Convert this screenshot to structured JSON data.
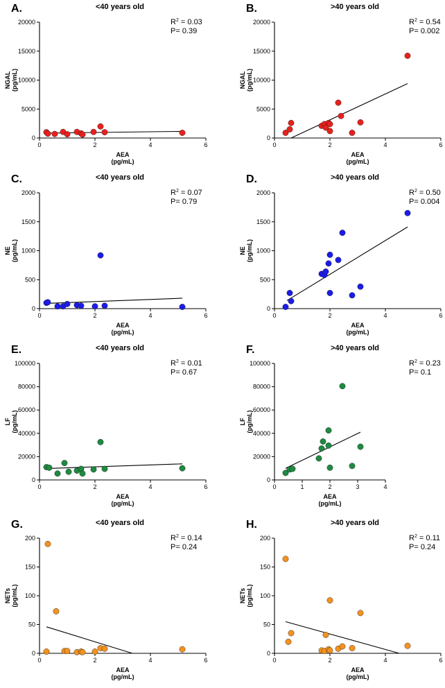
{
  "chart_data": [
    {
      "panel": "A.",
      "title": "<40 years old",
      "type": "scatter",
      "color": "#e8211d",
      "xlabel": [
        "AEA",
        "(pg/mL)"
      ],
      "ylabel": [
        "NGAL",
        "(pg/mL)"
      ],
      "xlim": [
        0,
        6
      ],
      "ylim": [
        0,
        20000
      ],
      "xticks": [
        0,
        2,
        4,
        6
      ],
      "yticks": [
        0,
        5000,
        10000,
        15000,
        20000
      ],
      "stats": [
        "R",
        "2",
        " = 0.03",
        "P= 0.39"
      ],
      "fit": [
        [
          0.25,
          850
        ],
        [
          5.15,
          1150
        ]
      ],
      "x": [
        0.25,
        0.3,
        0.55,
        0.85,
        1.0,
        1.35,
        1.5,
        1.55,
        1.95,
        2.2,
        2.35,
        5.15
      ],
      "y": [
        1000,
        750,
        700,
        1050,
        650,
        1050,
        800,
        600,
        1050,
        2000,
        1000,
        900
      ]
    },
    {
      "panel": "B.",
      "title": ">40 years old",
      "type": "scatter",
      "color": "#e8211d",
      "xlabel": [
        "AEA",
        "(pg/mL)"
      ],
      "ylabel": [
        "NGAL",
        "(pg/mL)"
      ],
      "xlim": [
        0,
        6
      ],
      "ylim": [
        0,
        20000
      ],
      "xticks": [
        0,
        2,
        4,
        6
      ],
      "yticks": [
        0,
        5000,
        10000,
        15000,
        20000
      ],
      "stats": [
        "R",
        "2",
        " = 0.54",
        "P= 0.002"
      ],
      "fit": [
        [
          0.6,
          0
        ],
        [
          4.8,
          9400
        ]
      ],
      "x": [
        0.4,
        0.55,
        0.6,
        1.7,
        1.8,
        1.85,
        1.95,
        2.0,
        2.0,
        2.3,
        2.4,
        2.8,
        3.1,
        4.8
      ],
      "y": [
        900,
        1500,
        2600,
        2100,
        2400,
        1800,
        2600,
        2400,
        1200,
        6100,
        3800,
        900,
        2700,
        14200
      ]
    },
    {
      "panel": "C.",
      "title": "<40 years old",
      "type": "scatter",
      "color": "#1c1ce8",
      "xlabel": [
        "AEA",
        "(pg/mL)"
      ],
      "ylabel": [
        "NE",
        "(pg/mL)"
      ],
      "xlim": [
        0,
        6
      ],
      "ylim": [
        0,
        2000
      ],
      "xticks": [
        0,
        2,
        4,
        6
      ],
      "yticks": [
        0,
        500,
        1000,
        1500,
        2000
      ],
      "stats": [
        "R",
        "2",
        " = 0.07",
        "P= 0.79"
      ],
      "fit": [
        [
          0.25,
          90
        ],
        [
          5.15,
          180
        ]
      ],
      "x": [
        0.25,
        0.3,
        0.65,
        0.85,
        1.0,
        1.35,
        1.5,
        2.0,
        2.2,
        2.35,
        5.15
      ],
      "y": [
        100,
        110,
        40,
        40,
        80,
        60,
        50,
        40,
        920,
        50,
        30
      ]
    },
    {
      "panel": "D.",
      "title": ">40 years old",
      "type": "scatter",
      "color": "#1c1ce8",
      "xlabel": [
        "AEA",
        "(pg/mL)"
      ],
      "ylabel": [
        "NE",
        "(pg/mL)"
      ],
      "xlim": [
        0,
        6
      ],
      "ylim": [
        0,
        2000
      ],
      "xticks": [
        0,
        2,
        4,
        6
      ],
      "yticks": [
        0,
        500,
        1000,
        1500,
        2000
      ],
      "stats": [
        "R",
        "2",
        " = 0.50",
        "P= 0.004"
      ],
      "fit": [
        [
          0.45,
          140
        ],
        [
          4.8,
          1410
        ]
      ],
      "x": [
        0.4,
        0.55,
        0.6,
        1.7,
        1.8,
        1.85,
        1.95,
        2.0,
        2.0,
        2.3,
        2.45,
        2.8,
        3.1,
        4.8
      ],
      "y": [
        30,
        270,
        130,
        600,
        580,
        640,
        780,
        930,
        270,
        840,
        1310,
        230,
        380,
        1650
      ]
    },
    {
      "panel": "E.",
      "title": "<40 years old",
      "type": "scatter",
      "color": "#1f8a42",
      "xlabel": [
        "AEA",
        "(pg/mL)"
      ],
      "ylabel": [
        "LF",
        "(pg/mL)"
      ],
      "xlim": [
        0,
        6
      ],
      "ylim": [
        0,
        100000
      ],
      "xticks": [
        0,
        2,
        4,
        6
      ],
      "yticks": [
        0,
        20000,
        40000,
        60000,
        80000,
        100000
      ],
      "stats": [
        "R",
        "2",
        " = 0.01",
        "P= 0.67"
      ],
      "fit": [
        [
          0.25,
          9800
        ],
        [
          5.15,
          13800
        ]
      ],
      "x": [
        0.25,
        0.35,
        0.65,
        0.9,
        1.05,
        1.35,
        1.5,
        1.55,
        1.95,
        2.2,
        2.35,
        5.15
      ],
      "y": [
        11000,
        10500,
        5500,
        14500,
        7000,
        8000,
        9500,
        5500,
        9000,
        32500,
        9500,
        10000
      ]
    },
    {
      "panel": "F.",
      "title": ">40 years old",
      "type": "scatter",
      "color": "#1f8a42",
      "xlabel": [
        "AEA",
        "(pg/mL)"
      ],
      "ylabel": [
        "LF",
        "(pg/mL)"
      ],
      "xlim": [
        0,
        4
      ],
      "ylim": [
        0,
        100000
      ],
      "xticks": [
        0,
        1,
        2,
        3,
        4
      ],
      "yticks": [
        0,
        20000,
        40000,
        60000,
        80000,
        100000
      ],
      "stats": [
        "R",
        "2",
        " = 0.23",
        "P= 0.1"
      ],
      "fit": [
        [
          0.4,
          10000
        ],
        [
          3.1,
          41000
        ]
      ],
      "x": [
        0.4,
        0.55,
        0.65,
        1.6,
        1.7,
        1.75,
        1.95,
        1.95,
        2.0,
        2.45,
        2.8,
        3.1
      ],
      "y": [
        6000,
        9000,
        9500,
        18500,
        27000,
        33000,
        42500,
        29500,
        10500,
        80500,
        12000,
        28500
      ]
    },
    {
      "panel": "G.",
      "title": "<40 years old",
      "type": "scatter",
      "color": "#f39221",
      "xlabel": [
        "AEA",
        "(pg/mL)"
      ],
      "ylabel": [
        "NETs",
        "(pg/mL)"
      ],
      "xlim": [
        0,
        6
      ],
      "ylim": [
        0,
        200
      ],
      "xticks": [
        0,
        2,
        4,
        6
      ],
      "yticks": [
        0,
        50,
        100,
        150,
        200
      ],
      "stats": [
        "R",
        "2",
        " = 0.14",
        "P= 0.24"
      ],
      "fit": [
        [
          0.25,
          46
        ],
        [
          3.35,
          0
        ]
      ],
      "x": [
        0.25,
        0.3,
        0.6,
        0.9,
        1.0,
        1.35,
        1.5,
        1.55,
        2.0,
        2.2,
        2.35,
        5.15
      ],
      "y": [
        3,
        190,
        73,
        4,
        4,
        2,
        3,
        2,
        3,
        9,
        8,
        7
      ]
    },
    {
      "panel": "H.",
      "title": ">40 years old",
      "type": "scatter",
      "color": "#f39221",
      "xlabel": [
        "AEA",
        "(pg/mL)"
      ],
      "ylabel": [
        "NETs",
        "(pg/mL)"
      ],
      "xlim": [
        0,
        6
      ],
      "ylim": [
        0,
        200
      ],
      "xticks": [
        0,
        2,
        4,
        6
      ],
      "yticks": [
        0,
        50,
        100,
        150,
        200
      ],
      "stats": [
        "R",
        "2",
        " = 0.11",
        "P= 0.24"
      ],
      "fit": [
        [
          0.4,
          55
        ],
        [
          4.5,
          0
        ]
      ],
      "x": [
        0.4,
        0.5,
        0.6,
        1.7,
        1.8,
        1.85,
        1.95,
        2.0,
        2.0,
        2.3,
        2.45,
        2.8,
        3.1,
        4.8
      ],
      "y": [
        164,
        20,
        35,
        5,
        4,
        32,
        7,
        92,
        5,
        8,
        12,
        9,
        70,
        13
      ]
    }
  ]
}
